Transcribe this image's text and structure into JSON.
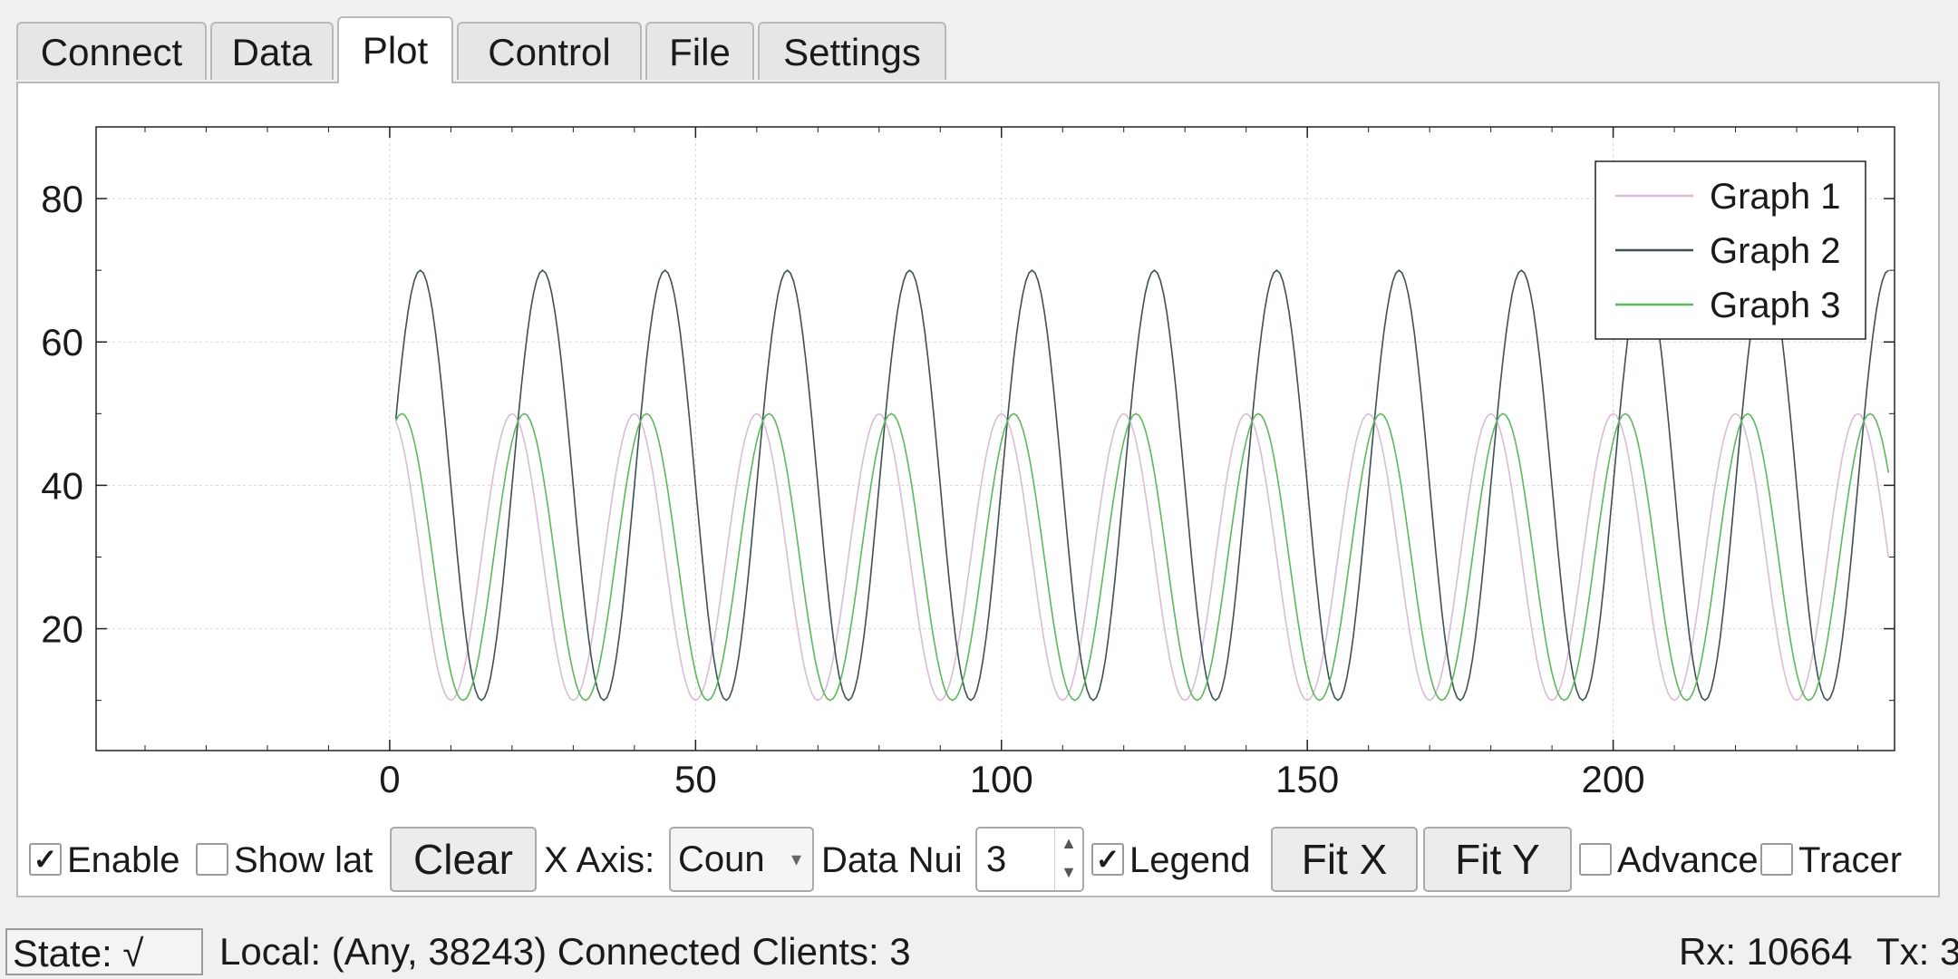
{
  "tabs": [
    {
      "label": "Connect",
      "active": false
    },
    {
      "label": "Data",
      "active": false
    },
    {
      "label": "Plot",
      "active": true
    },
    {
      "label": "Control",
      "active": false
    },
    {
      "label": "File",
      "active": false
    },
    {
      "label": "Settings",
      "active": false
    }
  ],
  "chart_data": {
    "type": "line",
    "x_range": [
      -48,
      246
    ],
    "ylim": [
      3,
      90
    ],
    "x_ticks": [
      "0",
      "50",
      "100",
      "150",
      "200"
    ],
    "y_ticks": [
      "20",
      "40",
      "60",
      "80"
    ],
    "grid": true,
    "legend": "top-right",
    "series": [
      {
        "name": "Graph 1",
        "color": "#d8bcd8",
        "amplitude": 20,
        "offset": 30,
        "period": 20,
        "phase": 0,
        "x": [
          1,
          245
        ]
      },
      {
        "name": "Graph 2",
        "color": "#3f4f55",
        "amplitude": 30,
        "offset": 40,
        "period": 20,
        "phase": 5,
        "x": [
          1,
          245
        ]
      },
      {
        "name": "Graph 3",
        "color": "#5cb85c",
        "amplitude": 20,
        "offset": 30,
        "period": 20,
        "phase": 2,
        "x": [
          1,
          245
        ]
      }
    ]
  },
  "controls": {
    "enable": {
      "label": "Enable",
      "checked": true
    },
    "show_latest": {
      "label": "Show lat",
      "checked": false
    },
    "clear_label": "Clear",
    "x_axis_label": "X Axis:",
    "x_axis_value": "Coun",
    "data_num_label": "Data Nui",
    "data_num_value": "3",
    "legend": {
      "label": "Legend",
      "checked": true
    },
    "fit_x_label": "Fit X",
    "fit_y_label": "Fit Y",
    "advanced": {
      "label": "Advance",
      "checked": false
    },
    "tracer": {
      "label": "Tracer",
      "checked": false
    }
  },
  "status": {
    "state": "State: √",
    "local": "Local: (Any, 38243) Connected Clients: 3",
    "rx": "Rx: 10664",
    "tx": "Tx: 3"
  }
}
